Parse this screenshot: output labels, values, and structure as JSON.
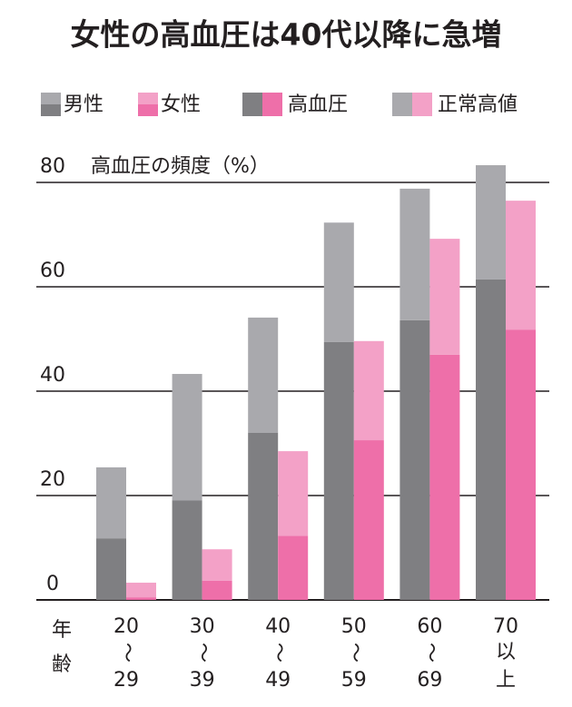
{
  "chart_data": {
    "type": "grouped-stacked-bar",
    "title": "女性の高血圧は40代以降に急増",
    "y_label": "高血圧の頻度（%）",
    "x_label": [
      "年",
      "齢"
    ],
    "categories": [
      [
        "20",
        "〜",
        "29"
      ],
      [
        "30",
        "〜",
        "39"
      ],
      [
        "40",
        "〜",
        "49"
      ],
      [
        "50",
        "〜",
        "59"
      ],
      [
        "60",
        "〜",
        "69"
      ],
      [
        "70",
        "以",
        "上"
      ]
    ],
    "stacks": [
      "高血圧",
      "正常高値"
    ],
    "series": [
      {
        "name": "男性",
        "colors": [
          "#7f7f82",
          "#a9a9ad"
        ],
        "values": [
          [
            11.8,
            19.1,
            32,
            49.4,
            53.6,
            61.4
          ],
          [
            13.6,
            24.2,
            22.1,
            22.9,
            25.2,
            21.9
          ]
        ]
      },
      {
        "name": "女性",
        "colors": [
          "#ee6fa9",
          "#f3a1c7"
        ],
        "values": [
          [
            0.5,
            3.7,
            12.3,
            30.6,
            47,
            51.8
          ],
          [
            2.8,
            6.0,
            16.2,
            19.0,
            22.2,
            24.7
          ]
        ]
      }
    ],
    "ylim": [
      0,
      80
    ],
    "yticks": [
      0,
      20,
      40,
      60,
      80
    ],
    "grid": true
  }
}
